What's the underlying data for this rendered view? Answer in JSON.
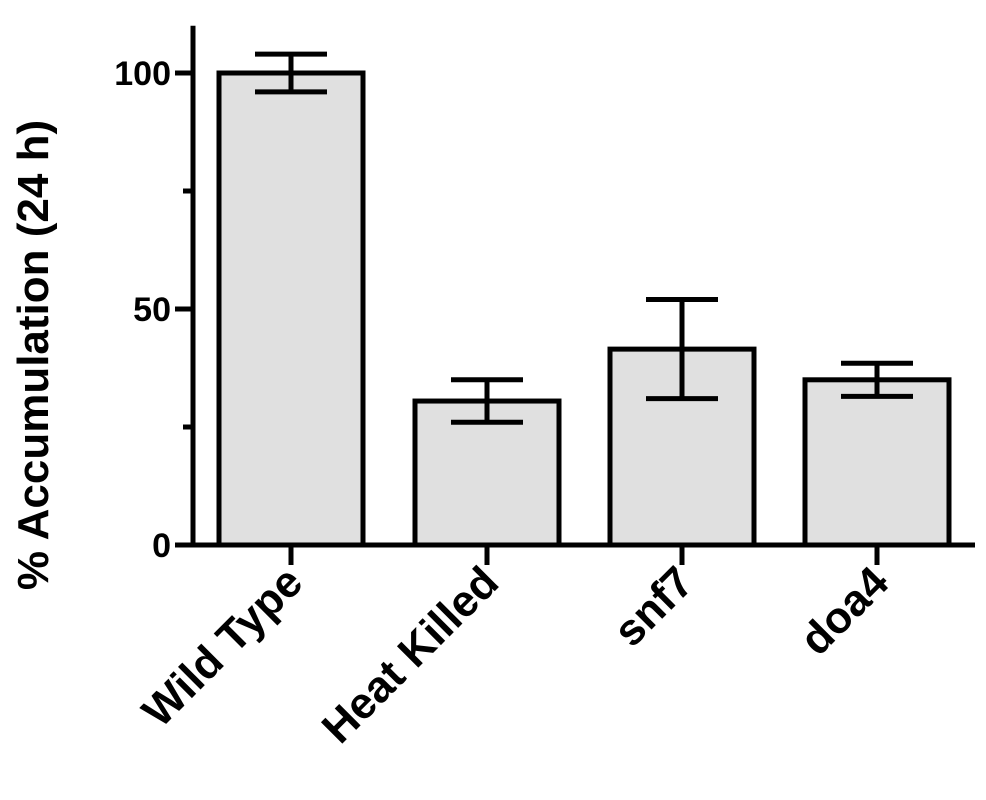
{
  "chart_data": {
    "type": "bar",
    "title": "",
    "xlabel": "",
    "ylabel": "% Accumulation  (24 h)",
    "ylim": [
      0,
      110
    ],
    "yticks_major": [
      0,
      50,
      100
    ],
    "yticks_minor": [
      25,
      75
    ],
    "categories": [
      "Wild Type",
      "Heat Killed",
      "snf7",
      "doa4"
    ],
    "series": [
      {
        "values": [
          100,
          30.5,
          41.5,
          35
        ],
        "error": [
          4,
          4.5,
          10.5,
          3.5
        ]
      }
    ],
    "grid": false,
    "legend": "none",
    "colors": {
      "bar_fill": "#e0e0e0",
      "stroke": "#000000"
    }
  }
}
